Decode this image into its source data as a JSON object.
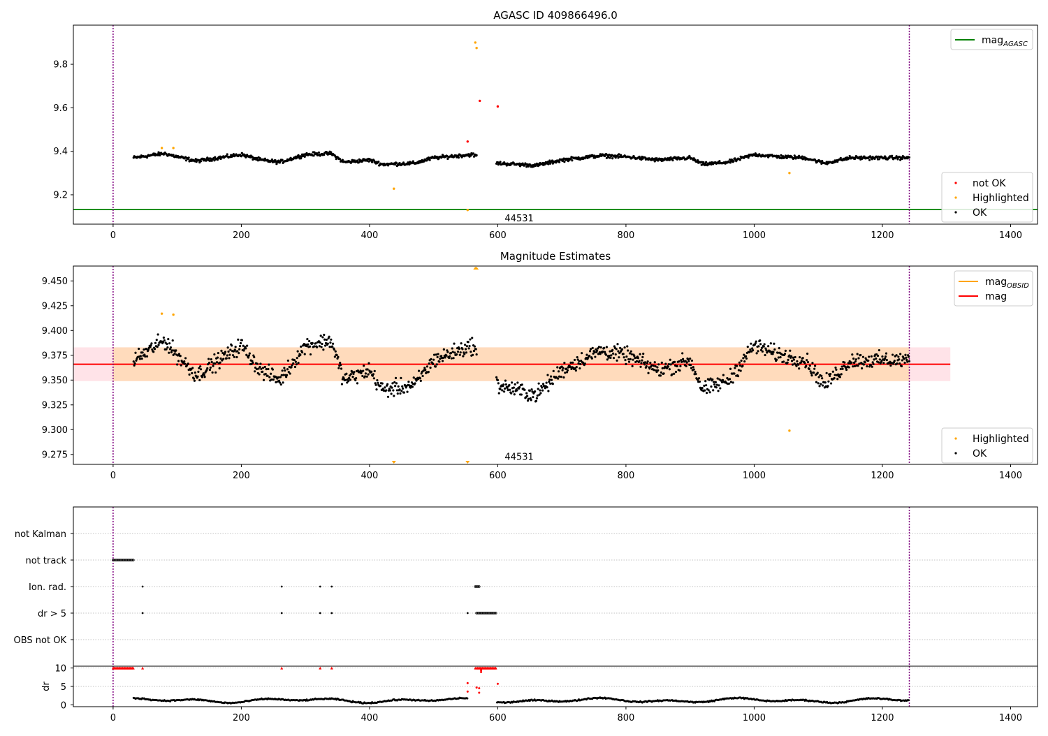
{
  "colors": {
    "ok": "#000000",
    "not_ok": "#ff0000",
    "highlighted": "#ffa500",
    "mag_agasc": "#008000",
    "mag": "#ff0000",
    "mag_obsid": "#ffa500",
    "vline": "#800080",
    "band_fill": "#ffc0cb",
    "band_obsid_fill": "#ffd8b0"
  },
  "chart_data": [
    {
      "id": "agasc",
      "type": "scatter",
      "title": "AGASC ID 409866496.0",
      "xlim": [
        -62,
        1442
      ],
      "ylim": [
        9.065,
        9.98
      ],
      "xticks": [
        0,
        200,
        400,
        600,
        800,
        1000,
        1200,
        1400
      ],
      "yticks": [
        9.2,
        9.4,
        9.6,
        9.8
      ],
      "ytick_labels": [
        "9.2",
        "9.4",
        "9.6",
        "9.8"
      ],
      "vlines": [
        0,
        1242
      ],
      "hline": {
        "name": "mag_AGASC",
        "y": 9.132
      },
      "annotation": {
        "text": "44531",
        "x": 600,
        "y": 9.085
      },
      "legends": [
        {
          "position": "top-right",
          "entries": [
            {
              "label": "mag",
              "sub": "AGASC",
              "kind": "line",
              "color": "#008000"
            }
          ]
        },
        {
          "position": "bottom-right",
          "entries": [
            {
              "label": "not OK",
              "kind": "point",
              "color": "#ff0000"
            },
            {
              "label": "Highlighted",
              "kind": "point",
              "color": "#ffa500"
            },
            {
              "label": "OK",
              "kind": "point",
              "color": "#000000"
            }
          ]
        }
      ],
      "ok_series_profile": {
        "name": "OK",
        "x_range": [
          32,
          1242
        ],
        "gap": [
          567,
          598
        ],
        "nodes": [
          [
            32,
            9.37
          ],
          [
            80,
            9.39
          ],
          [
            100,
            9.375
          ],
          [
            130,
            9.355
          ],
          [
            200,
            9.385
          ],
          [
            230,
            9.36
          ],
          [
            260,
            9.35
          ],
          [
            300,
            9.385
          ],
          [
            340,
            9.39
          ],
          [
            360,
            9.35
          ],
          [
            400,
            9.36
          ],
          [
            420,
            9.34
          ],
          [
            470,
            9.345
          ],
          [
            500,
            9.37
          ],
          [
            560,
            9.385
          ],
          [
            600,
            9.345
          ],
          [
            660,
            9.335
          ],
          [
            700,
            9.36
          ],
          [
            760,
            9.38
          ],
          [
            800,
            9.375
          ],
          [
            850,
            9.36
          ],
          [
            900,
            9.37
          ],
          [
            920,
            9.34
          ],
          [
            960,
            9.35
          ],
          [
            1000,
            9.385
          ],
          [
            1040,
            9.375
          ],
          [
            1080,
            9.37
          ],
          [
            1110,
            9.345
          ],
          [
            1150,
            9.37
          ],
          [
            1190,
            9.37
          ],
          [
            1242,
            9.37
          ]
        ],
        "scatter": 0.012
      },
      "not_ok_points": [
        [
          553,
          9.445
        ],
        [
          572,
          9.632
        ],
        [
          600,
          9.606
        ]
      ],
      "highlighted_points": [
        [
          76,
          9.415
        ],
        [
          94,
          9.415
        ],
        [
          438,
          9.228
        ],
        [
          553,
          9.13
        ],
        [
          565,
          9.9
        ],
        [
          567,
          9.875
        ],
        [
          1055,
          9.3
        ]
      ]
    },
    {
      "id": "magnitude-estimates",
      "type": "scatter",
      "title": "Magnitude Estimates",
      "xlim": [
        -62,
        1442
      ],
      "ylim": [
        9.265,
        9.465
      ],
      "xticks": [
        0,
        200,
        400,
        600,
        800,
        1000,
        1200,
        1400
      ],
      "yticks": [
        9.275,
        9.3,
        9.325,
        9.35,
        9.375,
        9.4,
        9.425,
        9.45
      ],
      "ytick_labels": [
        "9.275",
        "9.300",
        "9.325",
        "9.350",
        "9.375",
        "9.400",
        "9.425",
        "9.450"
      ],
      "vlines": [
        0,
        1242
      ],
      "mag_line": {
        "name": "mag",
        "y": 9.366,
        "band": [
          9.349,
          9.383
        ],
        "x_extent": [
          -62,
          1306
        ]
      },
      "mag_obsid_band": {
        "name": "mag_OBSID",
        "band": [
          9.349,
          9.383
        ],
        "x_extent": [
          0,
          1242
        ]
      },
      "annotation": {
        "text": "44531",
        "x": 600,
        "y": 9.268
      },
      "legends": [
        {
          "position": "top-right",
          "entries": [
            {
              "label": "mag",
              "sub": "OBSID",
              "kind": "line",
              "color": "#ffa500"
            },
            {
              "label": "mag",
              "kind": "line",
              "color": "#ff0000"
            }
          ]
        },
        {
          "position": "bottom-right",
          "entries": [
            {
              "label": "Highlighted",
              "kind": "point",
              "color": "#ffa500"
            },
            {
              "label": "OK",
              "kind": "point",
              "color": "#000000"
            }
          ]
        }
      ],
      "ok_series_profile": {
        "name": "OK",
        "x_range": [
          32,
          1242
        ],
        "gap": [
          567,
          598
        ],
        "nodes": [
          [
            32,
            9.37
          ],
          [
            80,
            9.39
          ],
          [
            100,
            9.375
          ],
          [
            130,
            9.355
          ],
          [
            200,
            9.385
          ],
          [
            230,
            9.36
          ],
          [
            260,
            9.35
          ],
          [
            300,
            9.385
          ],
          [
            340,
            9.39
          ],
          [
            360,
            9.35
          ],
          [
            400,
            9.36
          ],
          [
            420,
            9.34
          ],
          [
            470,
            9.345
          ],
          [
            500,
            9.37
          ],
          [
            560,
            9.385
          ],
          [
            600,
            9.345
          ],
          [
            660,
            9.335
          ],
          [
            700,
            9.36
          ],
          [
            760,
            9.38
          ],
          [
            800,
            9.375
          ],
          [
            850,
            9.36
          ],
          [
            900,
            9.37
          ],
          [
            920,
            9.34
          ],
          [
            960,
            9.35
          ],
          [
            1000,
            9.385
          ],
          [
            1040,
            9.375
          ],
          [
            1080,
            9.37
          ],
          [
            1110,
            9.345
          ],
          [
            1150,
            9.37
          ],
          [
            1190,
            9.37
          ],
          [
            1242,
            9.37
          ]
        ],
        "scatter": 0.012
      },
      "highlighted_points": [
        [
          76,
          9.417
        ],
        [
          94,
          9.416
        ],
        [
          1055,
          9.299
        ]
      ],
      "offscale_markers": [
        {
          "x": 438,
          "dir": "down"
        },
        {
          "x": 553,
          "dir": "down"
        },
        {
          "x": 565,
          "dir": "up"
        },
        {
          "x": 567,
          "dir": "up"
        }
      ]
    },
    {
      "id": "flags",
      "type": "scatter",
      "xlim": [
        -62,
        1442
      ],
      "vlines": [
        0,
        1242
      ],
      "categories": [
        "not Kalman",
        "not track",
        "Ion. rad.",
        "dr > 5",
        "OBS not OK"
      ],
      "flag_points": {
        "not Kalman": [],
        "not track": {
          "runs": [
            [
              0,
              32,
              1.5
            ]
          ]
        },
        "Ion. rad.": {
          "points": [
            46,
            263,
            323,
            341
          ],
          "runs": [
            [
              565,
              571,
              1.5
            ]
          ]
        },
        "dr > 5": {
          "points": [
            46,
            263,
            323,
            341,
            553
          ],
          "runs": [
            [
              567,
              598,
              1.5
            ]
          ]
        },
        "OBS not OK": []
      }
    },
    {
      "id": "dr",
      "type": "scatter",
      "xlim": [
        -62,
        1442
      ],
      "ylim": [
        -0.5,
        10.5
      ],
      "ylabel": "dr",
      "yticks": [
        0,
        5,
        10
      ],
      "ytick_labels": [
        "0",
        "5",
        "10"
      ],
      "xticks": [
        0,
        200,
        400,
        600,
        800,
        1000,
        1200,
        1400
      ],
      "vlines": [
        0,
        1242
      ],
      "series_ok": {
        "name": "OK",
        "x_range": [
          32,
          1242
        ],
        "gap": [
          553,
          598
        ],
        "mean": 1.2,
        "amp": 0.7
      },
      "series_not_ok": {
        "name": "not OK",
        "clipped_runs": [
          [
            0,
            32,
            1.5
          ],
          [
            567,
            598,
            1.5
          ]
        ],
        "clipped_points": [
          46,
          263,
          323,
          341,
          565
        ],
        "points": [
          [
            553,
            5.9
          ],
          [
            553,
            3.6
          ],
          [
            567,
            4.7
          ],
          [
            571,
            4.5
          ],
          [
            571,
            3.3
          ],
          [
            574,
            8.9
          ],
          [
            574,
            9.4
          ],
          [
            600,
            5.7
          ]
        ]
      }
    }
  ]
}
